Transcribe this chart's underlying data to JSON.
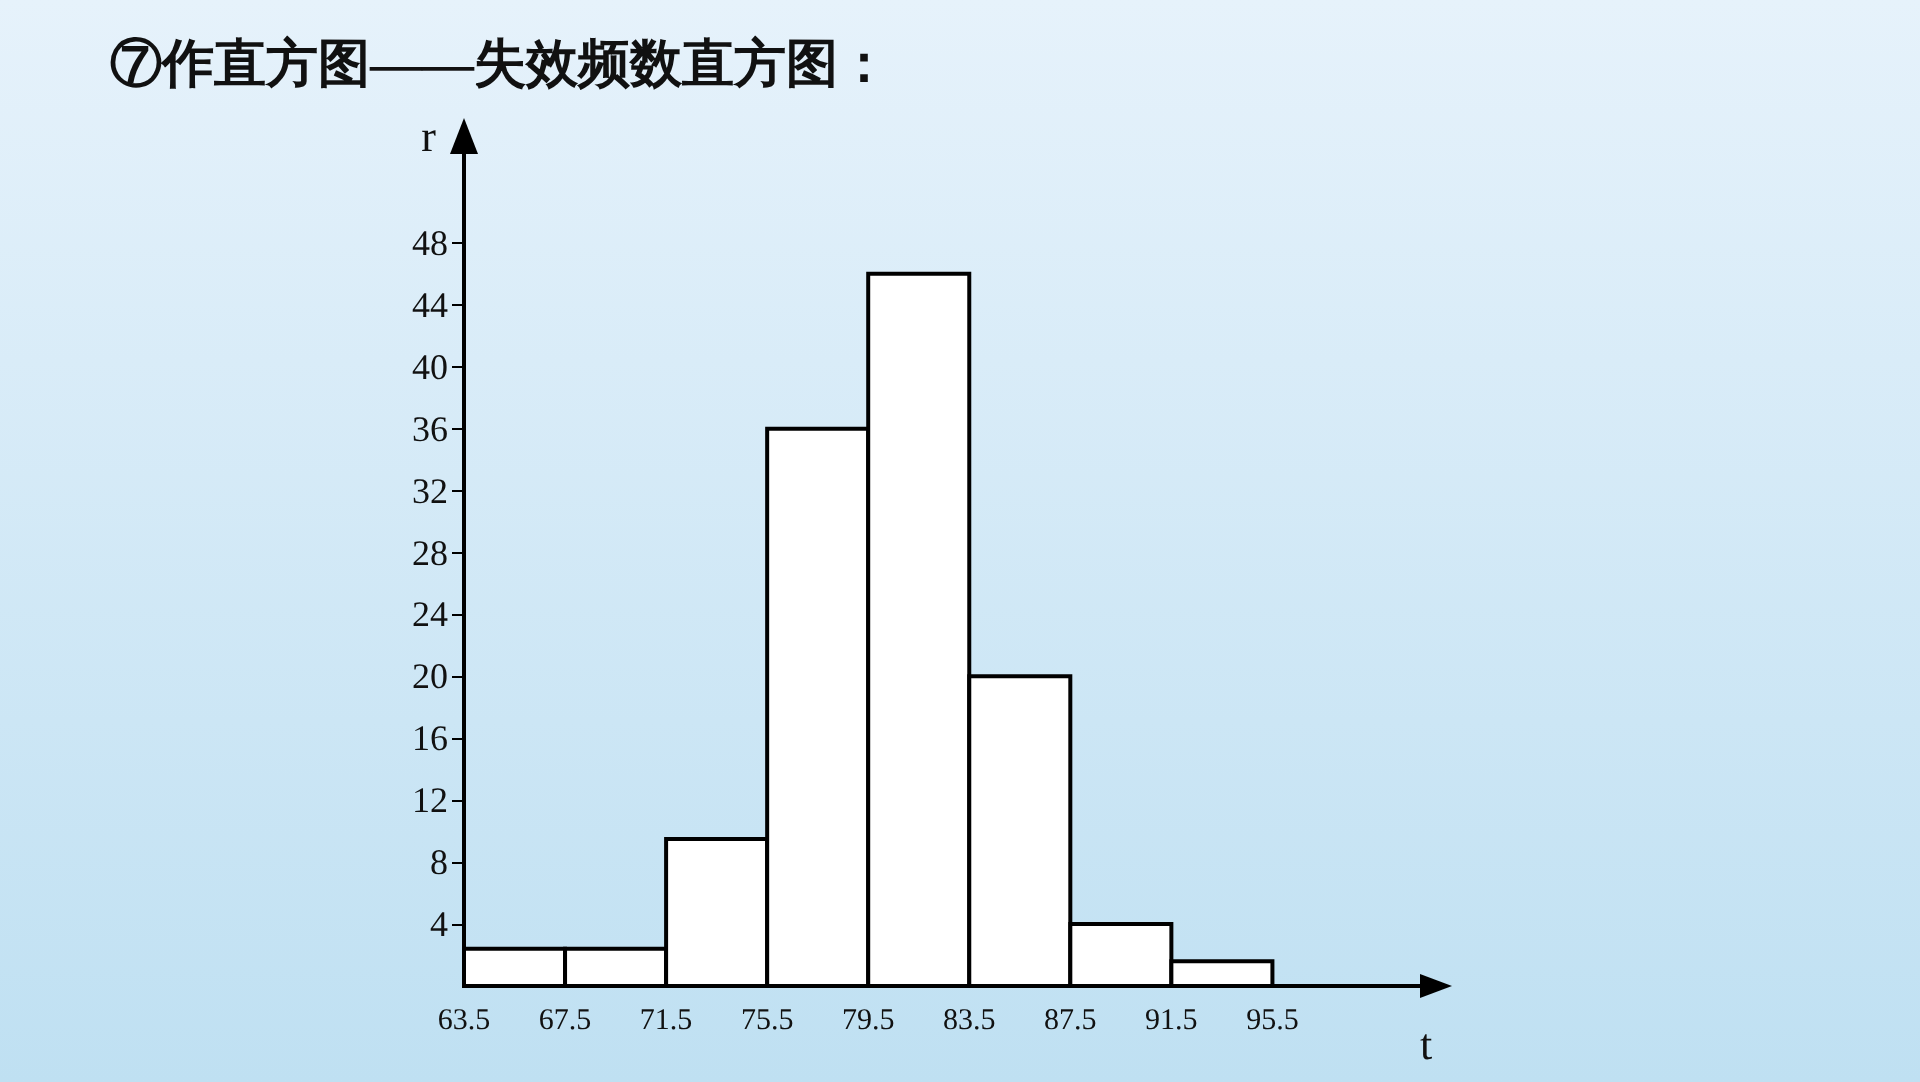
{
  "chart_data": {
    "type": "histogram",
    "title": "⑦作直方图——失效频数直方图：",
    "xlabel": "t",
    "ylabel": "r",
    "bins": [
      63.5,
      67.5,
      71.5,
      75.5,
      79.5,
      83.5,
      87.5,
      91.5,
      95.5
    ],
    "values": [
      2.4,
      2.4,
      9.5,
      36,
      46,
      20,
      4,
      1.6
    ],
    "color": "#ffffff",
    "xlim": [
      63.5,
      101.5
    ],
    "xticks": [
      63.5,
      67.5,
      71.5,
      75.5,
      79.5,
      83.5,
      87.5,
      91.5,
      95.5
    ],
    "ylim": [
      0,
      54
    ],
    "yticks": [
      4,
      8,
      12,
      16,
      20,
      24,
      28,
      32,
      36,
      40,
      44,
      48
    ],
    "grid": false
  }
}
